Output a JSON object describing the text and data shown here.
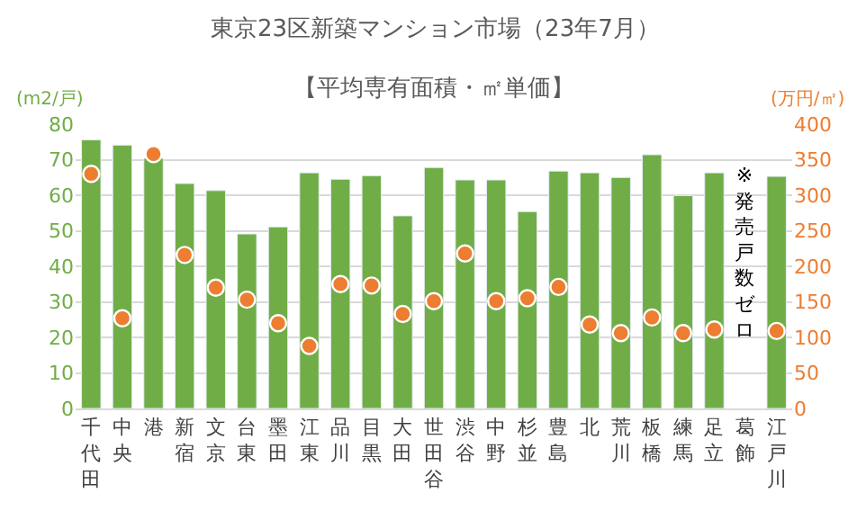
{
  "chart_data": {
    "type": "bar",
    "title": "東京23区新築マンション市場（23年7月）",
    "subtitle": "【平均専有面積・㎡単価】",
    "ylabel": "(m2/戸)",
    "y2label": "(万円/㎡)",
    "categories": [
      "千代田",
      "中央",
      "港",
      "新宿",
      "文京",
      "台東",
      "墨田",
      "江東",
      "品川",
      "目黒",
      "大田",
      "世田谷",
      "渋谷",
      "中野",
      "杉並",
      "豊島",
      "北",
      "荒川",
      "板橋",
      "練馬",
      "足立",
      "葛飾",
      "江戸川"
    ],
    "series": [
      {
        "color": "#70ad47",
        "values": [
          75.6,
          74.1,
          70.4,
          63.3,
          61.3,
          49.1,
          51.1,
          66.3,
          64.5,
          65.5,
          54.2,
          67.8,
          64.3,
          64.3,
          55.4,
          66.8,
          66.3,
          65.0,
          71.4,
          59.9,
          66.3,
          null,
          65.3
        ]
      },
      {
        "type": "scatter",
        "axis": "y2",
        "color": "#ed7d31",
        "marker": "circle",
        "values": [
          330,
          127,
          358,
          216,
          170,
          153,
          120,
          88,
          175,
          173,
          133,
          151,
          218,
          151,
          155,
          171,
          118,
          106,
          128,
          106,
          111,
          null,
          109
        ]
      }
    ],
    "ylim": [
      0,
      80
    ],
    "yticks": [
      0,
      10,
      20,
      30,
      40,
      50,
      60,
      70,
      80
    ],
    "y2lim": [
      0,
      400
    ],
    "y2ticks": [
      0,
      50,
      100,
      150,
      200,
      250,
      300,
      350,
      400
    ],
    "grid": "y",
    "annotations": [
      "※発売戸数ゼロ"
    ]
  }
}
